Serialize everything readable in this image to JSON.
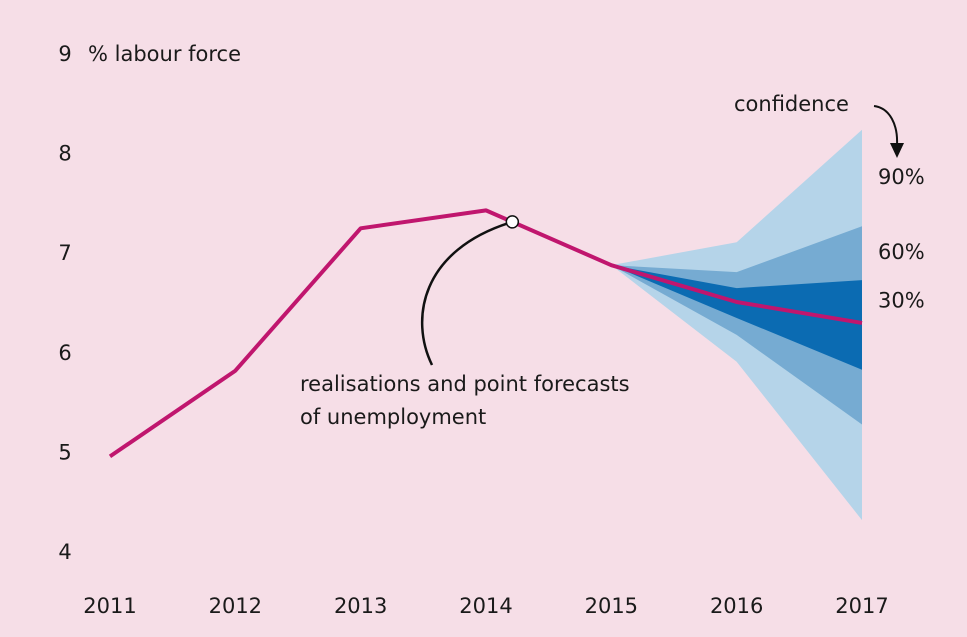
{
  "chart_data": {
    "type": "fan",
    "ylabel": "% labour force",
    "categories": [
      "2011",
      "2012",
      "2013",
      "2014",
      "2015",
      "2016",
      "2017"
    ],
    "series": [
      {
        "name": "realisations and point forecasts",
        "color": "#c0166e",
        "values": [
          4.97,
          5.83,
          7.26,
          7.44,
          6.89,
          6.52,
          6.31
        ]
      }
    ],
    "bands": [
      {
        "name": "90%",
        "color": "#b5d4e9",
        "lower": [
          null,
          null,
          null,
          null,
          6.89,
          5.92,
          4.33
        ],
        "upper": [
          null,
          null,
          null,
          null,
          6.89,
          7.12,
          8.25
        ]
      },
      {
        "name": "60%",
        "color": "#76abd2",
        "lower": [
          null,
          null,
          null,
          null,
          6.89,
          6.19,
          5.29
        ],
        "upper": [
          null,
          null,
          null,
          null,
          6.89,
          6.82,
          7.28
        ]
      },
      {
        "name": "30%",
        "color": "#0b6bb2",
        "lower": [
          null,
          null,
          null,
          null,
          6.89,
          6.36,
          5.84
        ],
        "upper": [
          null,
          null,
          null,
          null,
          6.89,
          6.66,
          6.74
        ]
      }
    ],
    "annotations": [
      "confidence",
      "realisations and point forecasts",
      "of unemployment"
    ],
    "ylim": [
      4,
      9
    ],
    "yticks": [
      4,
      5,
      6,
      7,
      8,
      9
    ]
  }
}
